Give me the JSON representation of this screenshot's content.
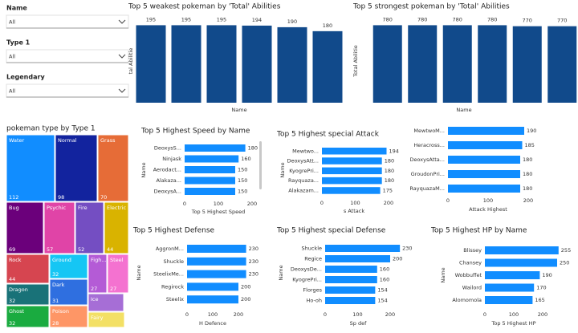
{
  "filters": [
    {
      "label": "Name",
      "value": "All"
    },
    {
      "label": "Type 1",
      "value": "All"
    },
    {
      "label": "Legendary",
      "value": "All"
    }
  ],
  "chart_data": [
    {
      "type": "column",
      "title": "Top 5 weakest pokeman by 'Total' Abilities",
      "x_label": "Name",
      "y_label": "tal Abilitie",
      "categories": [
        null,
        null,
        null,
        null,
        null,
        null
      ],
      "values": [
        195,
        195,
        195,
        194,
        190,
        180
      ],
      "color": "#114a8b",
      "ylim": [
        0,
        210
      ]
    },
    {
      "type": "column",
      "title": "Top 5 strongest pokeman by 'Total' Abilities",
      "x_label": "Name",
      "y_label": "Total Abilitie",
      "categories": [
        null,
        null,
        null,
        null,
        null,
        null
      ],
      "values": [
        780,
        780,
        780,
        780,
        770,
        770
      ],
      "color": "#114a8b",
      "ylim": [
        0,
        840
      ]
    },
    {
      "type": "treemap",
      "title": "pokeman type by Type 1",
      "categories": [
        "Water",
        "Normal",
        "Grass",
        "Bug",
        "Psychic",
        "Fire",
        "Electric",
        "Rock",
        "Ground",
        "Figh...",
        "Steel",
        "Dragon",
        "Dark",
        "Ghost",
        "Poison",
        "Ice",
        "Fairy"
      ],
      "values": [
        112,
        98,
        70,
        69,
        57,
        52,
        44,
        44,
        32,
        27,
        27,
        32,
        31,
        32,
        28,
        24,
        17
      ],
      "colors": [
        "#118dff",
        "#12239e",
        "#e66c37",
        "#6b007b",
        "#e044a7",
        "#744ec2",
        "#d9b300",
        "#d64550",
        "#15c6f4",
        "#b45bd6",
        "#f472d0",
        "#197278",
        "#2f6fe0",
        "#1aab40",
        "#fe9666",
        "#a66ed6",
        "#f3e065"
      ]
    },
    {
      "type": "hbar",
      "title": "Top 5 Highest Speed by Name",
      "x_label": "Top 5 Highest Speed",
      "y_label": "Name",
      "categories": [
        "DeoxysS...",
        "Ninjask",
        "Aerodact...",
        "Alakaza...",
        "DeoxysA..."
      ],
      "values": [
        180,
        160,
        150,
        150,
        150
      ],
      "color": "#118dff",
      "xlim": [
        0,
        215
      ],
      "xticks": [
        0,
        100,
        200
      ]
    },
    {
      "type": "hbar",
      "title": "Top 5 Highest special Attack",
      "x_label": "s Attack",
      "y_label": "Name",
      "categories": [
        "Mewtwo...",
        "DeoxysAtt...",
        "KyogrePri...",
        "Rayquaza...",
        "Alakazam..."
      ],
      "values": [
        194,
        180,
        180,
        180,
        175
      ],
      "color": "#118dff",
      "xlim": [
        0,
        225
      ],
      "xticks": [
        0,
        100,
        200
      ]
    },
    {
      "type": "hbar",
      "x_label": "Attack Highest",
      "categories": [
        "MewtwoM...",
        "Heracross...",
        "DeoxysAtta...",
        "GroudonPri...",
        "RayquazaM..."
      ],
      "values": [
        190,
        185,
        180,
        180,
        180
      ],
      "color": "#118dff",
      "xlim": [
        0,
        280
      ],
      "xticks": [
        0,
        100,
        200
      ]
    },
    {
      "type": "hbar",
      "title": "Top 5 Highest Defense",
      "x_label": "H Defence",
      "y_label": "Name",
      "categories": [
        "AggronM...",
        "Shuckle",
        "SteelixMe...",
        "Regirock",
        "Steelix"
      ],
      "values": [
        230,
        230,
        230,
        200,
        200
      ],
      "color": "#118dff",
      "xlim": [
        0,
        240
      ],
      "xticks": [
        0,
        100,
        200
      ]
    },
    {
      "type": "hbar",
      "title": "Top 5 Highest special Defense",
      "x_label": "Sp def",
      "y_label": "Name",
      "categories": [
        "Shuckle",
        "Regice",
        "DeoxysDe...",
        "KyogrePri...",
        "Florges",
        "Ho-oh"
      ],
      "values": [
        230,
        200,
        160,
        160,
        154,
        154
      ],
      "color": "#118dff",
      "xlim": [
        0,
        240
      ],
      "xticks": [
        0,
        100,
        200
      ]
    },
    {
      "type": "hbar",
      "title": "Top 5 Highest HP by Name",
      "x_label": "Top 5 Highest HP",
      "y_label": "Name",
      "categories": [
        "Blissey",
        "Chansey",
        "Wobbuffet",
        "Wailord",
        "Alomomola"
      ],
      "values": [
        255,
        250,
        190,
        170,
        165
      ],
      "color": "#118dff",
      "xlim": [
        0,
        265
      ],
      "xticks": [
        0,
        100,
        200
      ]
    }
  ]
}
